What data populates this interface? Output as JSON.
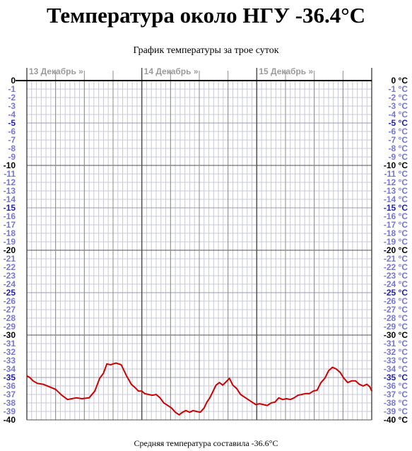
{
  "page": {
    "title": "Температура около НГУ -36.4°C",
    "subtitle": "График температуры за трое суток",
    "footer": "Средняя температура составила -36.6°C"
  },
  "colors": {
    "line": "#cc0000",
    "tick_major": "#000000",
    "tick_5": "#2222aa",
    "tick_minor": "#7777cc",
    "grid_minor": "#c8c8d8",
    "grid_major": "#505050",
    "day_label": "#9a9a9a"
  },
  "chart_data": {
    "type": "line",
    "title": "График температуры за трое суток",
    "day_labels": [
      "13 Декабрь »",
      "14 Декабрь »",
      "15 Декабрь »"
    ],
    "y_ticks_left": [
      "0",
      "-1",
      "-2",
      "-3",
      "-4",
      "-5",
      "-6",
      "-7",
      "-8",
      "-9",
      "-10",
      "-11",
      "-12",
      "-13",
      "-14",
      "-15",
      "-16",
      "-17",
      "-18",
      "-19",
      "-20",
      "-21",
      "-22",
      "-23",
      "-24",
      "-25",
      "-26",
      "-27",
      "-28",
      "-29",
      "-30",
      "-31",
      "-32",
      "-33",
      "-34",
      "-35",
      "-36",
      "-37",
      "-38",
      "-39",
      "-40"
    ],
    "y_ticks_right": [
      "0 °C",
      "-1 °C",
      "-2 °C",
      "-3 °C",
      "-4 °C",
      "-5 °C",
      "-6 °C",
      "-7 °C",
      "-8 °C",
      "-9 °C",
      "-10 °C",
      "-11 °C",
      "-12 °C",
      "-13 °C",
      "-14 °C",
      "-15 °C",
      "-16 °C",
      "-17 °C",
      "-18 °C",
      "-19 °C",
      "-20 °C",
      "-21 °C",
      "-22 °C",
      "-23 °C",
      "-24 °C",
      "-25 °C",
      "-26 °C",
      "-27 °C",
      "-28 °C",
      "-29 °C",
      "-30 °C",
      "-31 °C",
      "-32 °C",
      "-33 °C",
      "-34 °C",
      "-35 °C",
      "-36 °C",
      "-37 °C",
      "-38 °C",
      "-39 °C",
      "-40 °C"
    ],
    "ylim": [
      -40,
      0
    ],
    "xlim_hours": [
      0,
      72
    ],
    "grid": true,
    "series": [
      {
        "x_hours": [
          0,
          0.6,
          1.3,
          2.2,
          3.4,
          4.7,
          6.0,
          7.3,
          8.5,
          9.4,
          10.3,
          11.5,
          13.0,
          14.2,
          15.2,
          16.0,
          16.7,
          17.5,
          18.6,
          19.7,
          20.8,
          21.8,
          22.6,
          23.3,
          24.0,
          24.6,
          25.4,
          26.2,
          27.0,
          27.8,
          28.6,
          29.4,
          30.2,
          31.0,
          31.8,
          32.5,
          33.2,
          34.0,
          34.7,
          35.4,
          36.2,
          37.0,
          37.6,
          38.2,
          38.8,
          39.5,
          40.2,
          40.9,
          41.6,
          42.3,
          43.0,
          43.8,
          44.6,
          45.4,
          46.2,
          47.0,
          47.8,
          48.6,
          49.4,
          50.2,
          51.0,
          51.8,
          52.6,
          53.4,
          54.2,
          55.0,
          55.8,
          56.6,
          57.4,
          58.2,
          59.0,
          59.8,
          60.6,
          61.4,
          62.2,
          63.0,
          63.8,
          64.6,
          65.4,
          66.2,
          67.0,
          67.8,
          68.6,
          69.4,
          70.2,
          71.0,
          71.6,
          72.0
        ],
        "values": [
          -34.8,
          -35.0,
          -35.4,
          -35.7,
          -35.8,
          -36.1,
          -36.4,
          -37.1,
          -37.6,
          -37.5,
          -37.4,
          -37.5,
          -37.4,
          -36.6,
          -35.1,
          -34.5,
          -33.4,
          -33.5,
          -33.3,
          -33.5,
          -34.8,
          -35.8,
          -36.2,
          -36.6,
          -36.6,
          -36.9,
          -37.0,
          -37.1,
          -37.0,
          -37.4,
          -38.0,
          -38.3,
          -38.6,
          -39.1,
          -39.4,
          -39.1,
          -38.9,
          -39.1,
          -38.9,
          -39.0,
          -39.1,
          -38.6,
          -37.9,
          -37.4,
          -36.7,
          -35.9,
          -35.6,
          -35.9,
          -35.5,
          -35.1,
          -35.9,
          -36.3,
          -37.0,
          -37.3,
          -37.6,
          -37.9,
          -38.2,
          -38.1,
          -38.2,
          -38.3,
          -38.0,
          -37.9,
          -37.4,
          -37.6,
          -37.5,
          -37.6,
          -37.4,
          -37.1,
          -37.0,
          -36.9,
          -36.9,
          -36.6,
          -36.5,
          -35.6,
          -35.1,
          -34.2,
          -33.8,
          -34.0,
          -34.4,
          -35.1,
          -35.6,
          -35.4,
          -35.4,
          -35.8,
          -36.0,
          -35.8,
          -36.1,
          -36.6
        ]
      }
    ]
  }
}
